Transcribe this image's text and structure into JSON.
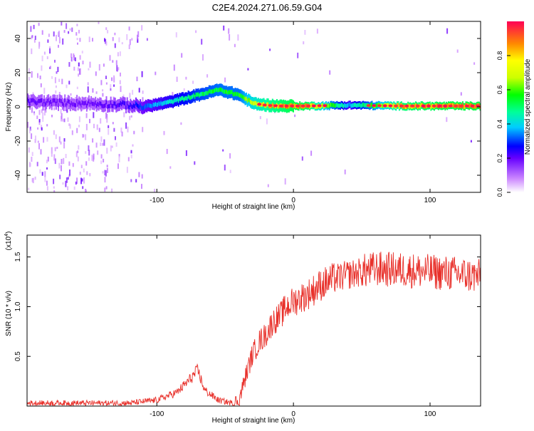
{
  "title": "C2E4.2024.271.06.59.G04",
  "colorbar": {
    "label": "Normalized spectral amplitude",
    "ticks": [
      "0.0",
      "0.2",
      "0.4",
      "0.6",
      "0.8"
    ],
    "tick_values": [
      0.0,
      0.2,
      0.4,
      0.6,
      0.8
    ]
  },
  "chart_data": [
    {
      "type": "heatmap",
      "xlabel": "Height of straight line (km)",
      "ylabel": "Frequency (Hz)",
      "xlim": [
        -195,
        137
      ],
      "ylim": [
        -50,
        50
      ],
      "x_ticks": [
        -100,
        0,
        100
      ],
      "x_tick_labels": [
        "-100",
        "0",
        "100"
      ],
      "y_ticks": [
        -40,
        -20,
        0,
        20,
        40
      ],
      "y_tick_labels": [
        "-40",
        "-20",
        "0",
        "20",
        "40"
      ],
      "ridge": {
        "x": [
          -195,
          -150,
          -120,
          -110,
          -90,
          -70,
          -55,
          -40,
          -30,
          -20,
          -10,
          0,
          10,
          40,
          80,
          120,
          137
        ],
        "y": [
          3,
          2,
          1,
          0,
          3,
          7,
          10,
          7,
          2,
          1,
          0.5,
          0.5,
          0.5,
          1,
          0.5,
          0.5,
          0.5
        ],
        "amplitude": [
          0.22,
          0.2,
          0.25,
          0.35,
          0.45,
          0.55,
          0.6,
          0.6,
          0.75,
          0.85,
          0.9,
          0.95,
          0.92,
          0.4,
          0.9,
          0.95,
          0.95
        ]
      }
    },
    {
      "type": "line",
      "xlabel": "Height of straight line (km)",
      "ylabel": "SNR (10 * v/v)",
      "multiplier_label": "(x10",
      "multiplier_exponent": "4",
      "xlim": [
        -195,
        137
      ],
      "ylim": [
        0,
        1.72
      ],
      "x_ticks": [
        -100,
        0,
        100
      ],
      "x_tick_labels": [
        "-100",
        "0",
        "100"
      ],
      "y_ticks": [
        0.5,
        1.0,
        1.5
      ],
      "y_tick_labels": [
        "0.5",
        "1.0",
        "1.5"
      ],
      "color": "#e8302a",
      "envelope": {
        "x": [
          -195,
          -120,
          -100,
          -85,
          -75,
          -70,
          -65,
          -55,
          -45,
          -40,
          -35,
          -30,
          -25,
          -20,
          -15,
          -10,
          -5,
          0,
          10,
          20,
          30,
          40,
          50,
          60,
          80,
          100,
          120,
          137
        ],
        "y": [
          0.03,
          0.03,
          0.06,
          0.14,
          0.28,
          0.36,
          0.16,
          0.06,
          0.03,
          0.05,
          0.3,
          0.52,
          0.65,
          0.72,
          0.85,
          0.9,
          1.0,
          1.05,
          1.12,
          1.22,
          1.28,
          1.32,
          1.35,
          1.38,
          1.37,
          1.35,
          1.33,
          1.3
        ]
      }
    }
  ]
}
